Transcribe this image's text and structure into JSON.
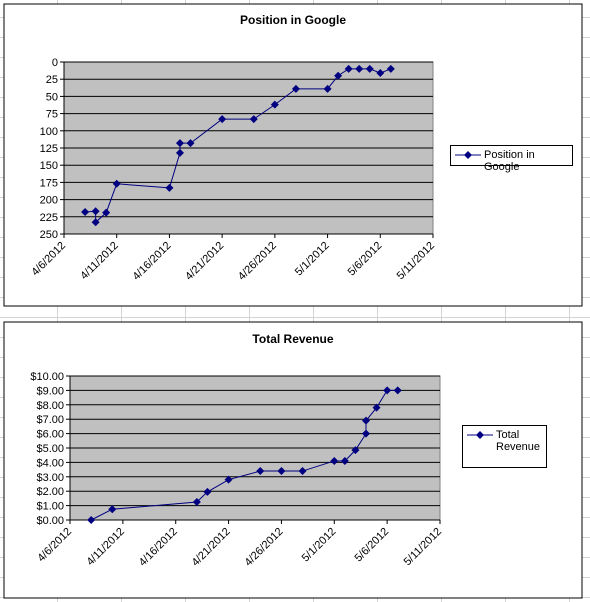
{
  "chart_data": [
    {
      "type": "line",
      "title": "Position in Google",
      "x": [
        "4/8/2012",
        "4/9/2012",
        "4/9/2012",
        "4/10/2012",
        "4/11/2012",
        "4/16/2012",
        "4/17/2012",
        "4/17/2012",
        "4/18/2012",
        "4/21/2012",
        "4/24/2012",
        "4/26/2012",
        "4/28/2012",
        "5/1/2012",
        "5/2/2012",
        "5/3/2012",
        "5/4/2012",
        "5/5/2012",
        "5/6/2012",
        "5/7/2012"
      ],
      "series": [
        {
          "name": "Position in Google",
          "color": "#000080",
          "values": [
            218,
            217,
            233,
            219,
            177,
            183,
            132,
            118,
            118,
            83,
            83,
            62,
            39,
            39,
            20,
            10,
            10,
            10,
            16,
            10
          ]
        }
      ],
      "xlim": [
        "4/6/2012",
        "5/11/2012"
      ],
      "xticks": [
        "4/6/2012",
        "4/11/2012",
        "4/16/2012",
        "4/21/2012",
        "4/26/2012",
        "5/1/2012",
        "5/6/2012",
        "5/11/2012"
      ],
      "ylim": [
        250,
        0
      ],
      "yticks": [
        0,
        25,
        50,
        75,
        100,
        125,
        150,
        175,
        200,
        225,
        250
      ],
      "grid": true,
      "legend": "right"
    },
    {
      "type": "line",
      "title": "Total Revenue",
      "x": [
        "4/8/2012",
        "4/10/2012",
        "4/18/2012",
        "4/19/2012",
        "4/21/2012",
        "4/24/2012",
        "4/26/2012",
        "4/28/2012",
        "5/1/2012",
        "5/2/2012",
        "5/3/2012",
        "5/4/2012",
        "5/4/2012",
        "5/5/2012",
        "5/6/2012",
        "5/7/2012"
      ],
      "series": [
        {
          "name": "Total Revenue",
          "color": "#000080",
          "values": [
            0,
            0.75,
            1.25,
            1.95,
            2.8,
            3.4,
            3.4,
            3.4,
            4.1,
            4.1,
            4.85,
            6,
            6.9,
            7.8,
            9,
            9
          ]
        }
      ],
      "xlim": [
        "4/6/2012",
        "5/11/2012"
      ],
      "xticks": [
        "4/6/2012",
        "4/11/2012",
        "4/16/2012",
        "4/21/2012",
        "4/26/2012",
        "5/1/2012",
        "5/6/2012",
        "5/11/2012"
      ],
      "ylim": [
        0,
        10
      ],
      "yticks": [
        {
          "value": 0,
          "label": "$0.00"
        },
        {
          "value": 1,
          "label": "$1.00"
        },
        {
          "value": 2,
          "label": "$2.00"
        },
        {
          "value": 3,
          "label": "$3.00"
        },
        {
          "value": 4,
          "label": "$4.00"
        },
        {
          "value": 5,
          "label": "$5.00"
        },
        {
          "value": 6,
          "label": "$6.00"
        },
        {
          "value": 7,
          "label": "$7.00"
        },
        {
          "value": 8,
          "label": "$8.00"
        },
        {
          "value": 9,
          "label": "$9.00"
        },
        {
          "value": 10,
          "label": "$10.00"
        }
      ],
      "grid": true,
      "legend": "right"
    }
  ]
}
